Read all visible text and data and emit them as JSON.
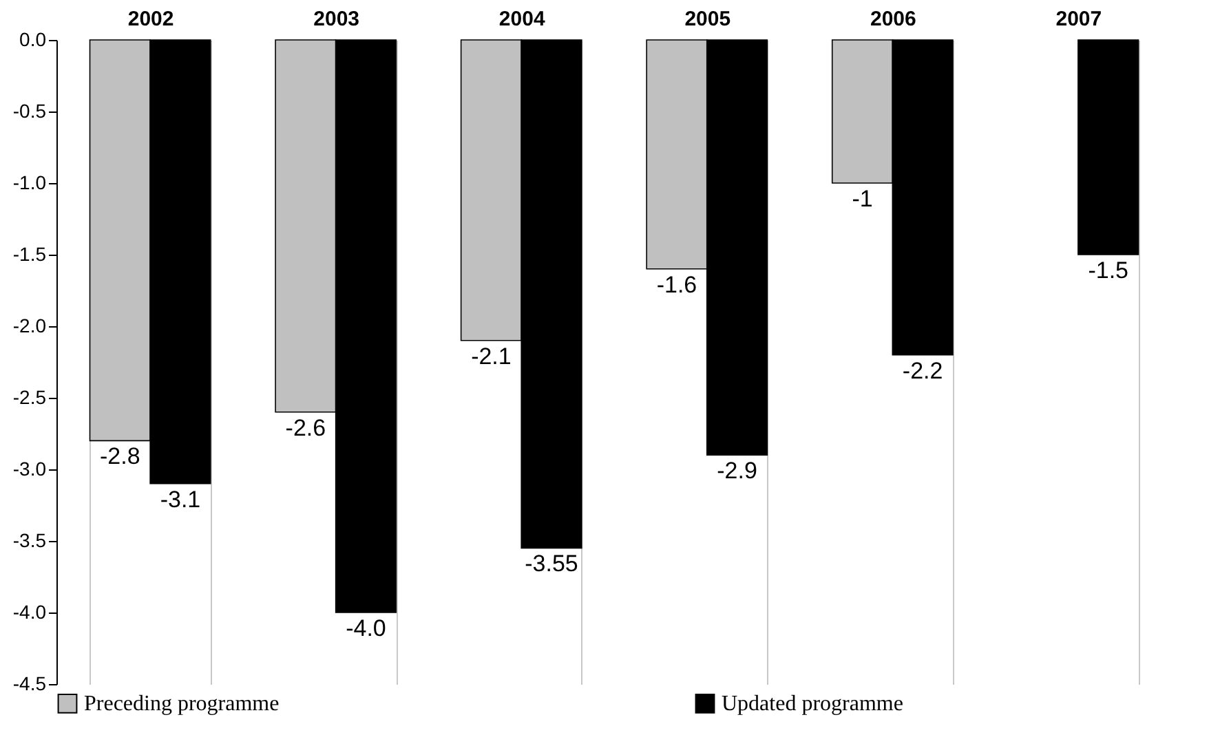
{
  "chart_data": {
    "type": "bar",
    "categories": [
      "2002",
      "2003",
      "2004",
      "2005",
      "2006",
      "2007"
    ],
    "series": [
      {
        "name": "Preceding programme",
        "color": "#c0c0c0",
        "values": [
          -2.8,
          -2.6,
          -2.1,
          -1.6,
          -1,
          null
        ],
        "value_labels": [
          "-2.8",
          "-2.6",
          "-2.1",
          "-1.6",
          "-1",
          null
        ]
      },
      {
        "name": "Updated programme",
        "color": "#000000",
        "values": [
          -3.1,
          -4.0,
          -3.55,
          -2.9,
          -2.2,
          -1.5
        ],
        "value_labels": [
          "-3.1",
          "-4.0",
          "-3.55",
          "-2.9",
          "-2.2",
          "-1.5"
        ]
      }
    ],
    "ylim": [
      -4.5,
      0
    ],
    "yticks": [
      {
        "value": -4.5,
        "label": "-4.5"
      },
      {
        "value": -4,
        "label": "-4.0"
      },
      {
        "value": -3.5,
        "label": "-3.5"
      },
      {
        "value": -3,
        "label": "-3.0"
      },
      {
        "value": -2.5,
        "label": "-2.5"
      },
      {
        "value": -2,
        "label": "-2.0"
      },
      {
        "value": -1.5,
        "label": "-1.5"
      },
      {
        "value": -1,
        "label": "-1.0"
      },
      {
        "value": -0.5,
        "label": "-0.5"
      },
      {
        "value": 0,
        "label": "0.0"
      }
    ],
    "grid": "x",
    "legend": "bottom"
  }
}
